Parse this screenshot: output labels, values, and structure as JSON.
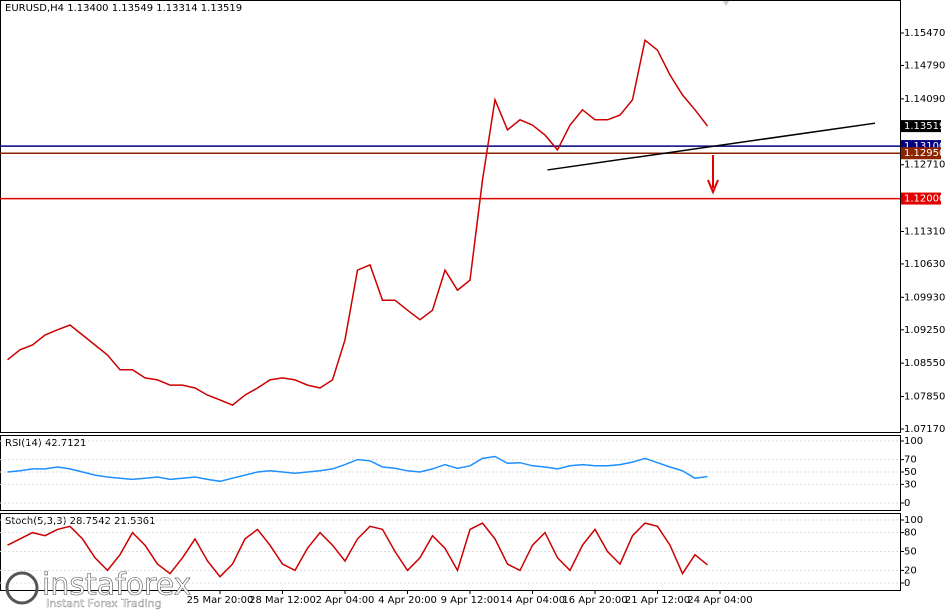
{
  "chart_data": [
    {
      "type": "line",
      "title": "EURUSD,H4  1.13400 1.13549 1.13314 1.13519",
      "categories": [
        null,
        null,
        null,
        null,
        null,
        null,
        null,
        null,
        null,
        null,
        null,
        null,
        null,
        null,
        null,
        null,
        null,
        "25 Mar 20:00",
        null,
        null,
        null,
        null,
        "28 Mar 12:00",
        null,
        null,
        null,
        null,
        "2 Apr 04:00",
        null,
        null,
        null,
        null,
        "4 Apr 20:00",
        null,
        null,
        null,
        null,
        "9 Apr 12:00",
        null,
        null,
        null,
        null,
        "14 Apr 04:00",
        null,
        null,
        null,
        null,
        "16 Apr 20:00",
        null,
        null,
        null,
        null,
        "21 Apr 12:00",
        null,
        null,
        null,
        null,
        "24 Apr 04:00"
      ],
      "series": [
        {
          "color": "#cc0000",
          "values": [
            1.0862,
            1.0883,
            1.0893,
            1.0914,
            1.0925,
            1.0935,
            1.0914,
            1.0893,
            1.0872,
            1.0841,
            1.0841,
            1.0824,
            1.082,
            1.0809,
            1.0809,
            1.0803,
            1.0788,
            1.0778,
            1.0767,
            1.0788,
            1.0803,
            1.082,
            1.0824,
            1.082,
            1.0809,
            1.0803,
            1.082,
            1.0904,
            1.105,
            1.1061,
            1.0987,
            1.0987,
            1.0966,
            1.0946,
            1.0966,
            1.105,
            1.1008,
            1.1029,
            1.1239,
            1.1407,
            1.1344,
            1.1365,
            1.1354,
            1.1333,
            1.1302,
            1.1354,
            1.1386,
            1.1365,
            1.1365,
            1.1375,
            1.1407,
            1.1532,
            1.1511,
            1.1459,
            1.1417,
            1.1386,
            1.13519,
            null
          ]
        }
      ],
      "ylim": [
        1.07107,
        1.16162
      ],
      "yticks": [
        {
          "value": 1.1547,
          "label": "1.15470"
        },
        {
          "value": 1.1479,
          "label": "1.14790"
        },
        {
          "value": 1.1409,
          "label": "1.14090"
        },
        {
          "value": 1.1271,
          "label": "1.12710"
        },
        {
          "value": 1.1131,
          "label": "1.11310"
        },
        {
          "value": 1.1063,
          "label": "1.10630"
        },
        {
          "value": 1.0993,
          "label": "1.09930"
        },
        {
          "value": 1.0925,
          "label": "1.09250"
        },
        {
          "value": 1.0855,
          "label": "1.08550"
        },
        {
          "value": 1.0785,
          "label": "1.07850"
        },
        {
          "value": 1.0717,
          "label": "1.07170"
        }
      ],
      "levels": [
        {
          "value": 1.13519,
          "label": "1.13519",
          "color": "#000000"
        },
        {
          "value": 1.131,
          "label": "1.13100",
          "color": "#000080"
        },
        {
          "value": 1.1295,
          "label": "1.12950",
          "color": "#8b2500"
        },
        {
          "value": 1.12,
          "label": "1.12000",
          "color": "#e00000"
        }
      ],
      "trendline": {
        "x": [
          43.2,
          69.4
        ],
        "y": [
          1.126,
          1.1358
        ],
        "color": "#000000"
      }
    },
    {
      "type": "line",
      "title": "RSI(14) 42.7121",
      "series": [
        {
          "color": "#1e90ff",
          "values": [
            50,
            52,
            55,
            55,
            58,
            55,
            50,
            45,
            42,
            40,
            38,
            40,
            42,
            38,
            40,
            42,
            38,
            35,
            40,
            45,
            50,
            52,
            50,
            48,
            50,
            52,
            55,
            62,
            70,
            68,
            58,
            56,
            52,
            50,
            55,
            62,
            56,
            60,
            72,
            75,
            64,
            65,
            60,
            58,
            55,
            60,
            62,
            60,
            60,
            62,
            66,
            72,
            65,
            58,
            52,
            40,
            42.7121,
            null
          ]
        }
      ],
      "ylim": [
        -11.3,
        109.7
      ],
      "yticks": [
        0,
        30,
        50,
        70,
        100
      ]
    },
    {
      "type": "line",
      "title": "Stoch(5,3,3) 28.7542 21.5361",
      "series": [
        {
          "color": "#cc0000",
          "values": [
            60,
            70,
            80,
            75,
            85,
            90,
            70,
            40,
            20,
            45,
            80,
            60,
            30,
            15,
            40,
            70,
            35,
            10,
            30,
            70,
            85,
            60,
            30,
            20,
            55,
            80,
            60,
            35,
            70,
            90,
            85,
            50,
            20,
            40,
            75,
            55,
            20,
            85,
            95,
            70,
            30,
            20,
            60,
            80,
            40,
            20,
            60,
            85,
            50,
            30,
            75,
            95,
            90,
            60,
            15,
            45,
            28.7542,
            null
          ]
        }
      ],
      "ylim": [
        -11.1,
        111.1
      ],
      "yticks": [
        0,
        20,
        50,
        80,
        100
      ]
    }
  ],
  "watermark": {
    "brand": "instaforex",
    "tagline": "Instant Forex Trading"
  }
}
